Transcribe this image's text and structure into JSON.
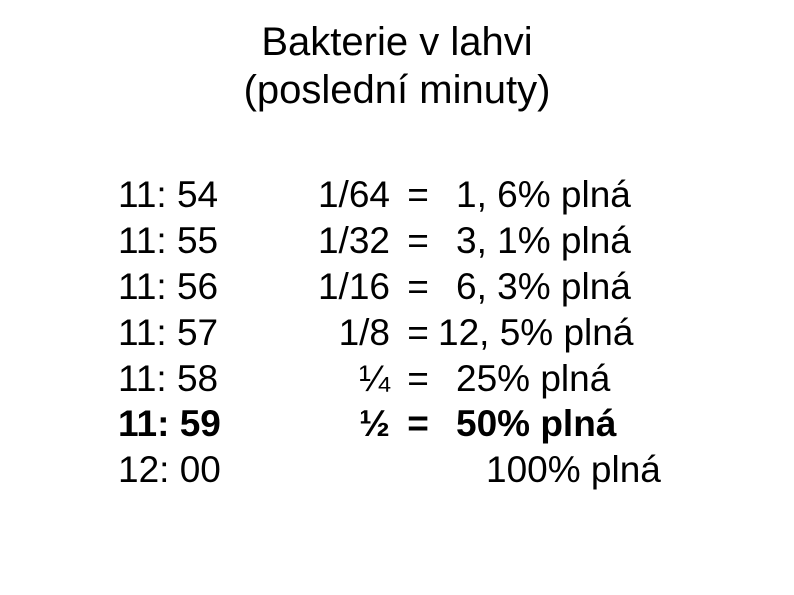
{
  "title": {
    "line1": "Bakterie v lahvi",
    "line2": "(poslední minuty)"
  },
  "rows": [
    {
      "time": "11: 54",
      "fraction": "1/64",
      "equals": "=",
      "value": "1, 6% plná",
      "bold": false,
      "valueIndent": "indent1"
    },
    {
      "time": "11: 55",
      "fraction": "1/32",
      "equals": "=",
      "value": "3, 1% plná",
      "bold": false,
      "valueIndent": "indent1"
    },
    {
      "time": "11: 56",
      "fraction": "1/16",
      "equals": "=",
      "value": "6, 3% plná",
      "bold": false,
      "valueIndent": "indent1"
    },
    {
      "time": "11: 57",
      "fraction": "1/8",
      "equals": "=",
      "value": "12, 5% plná",
      "bold": false,
      "valueIndent": "indent2"
    },
    {
      "time": "11: 58",
      "fraction": "¼",
      "equals": "=",
      "value": "25% plná",
      "bold": false,
      "valueIndent": "indent1"
    },
    {
      "time": "11: 59",
      "fraction": "½",
      "equals": "=",
      "value": "50% plná",
      "bold": true,
      "valueIndent": "indent1"
    },
    {
      "time": "12: 00",
      "fraction": "",
      "equals": "",
      "value": "100% plná",
      "bold": false,
      "valueIndent": "indent-final"
    }
  ],
  "styling": {
    "background_color": "#ffffff",
    "text_color": "#000000",
    "title_fontsize": 40,
    "body_fontsize": 37,
    "font_family": "Arial"
  }
}
